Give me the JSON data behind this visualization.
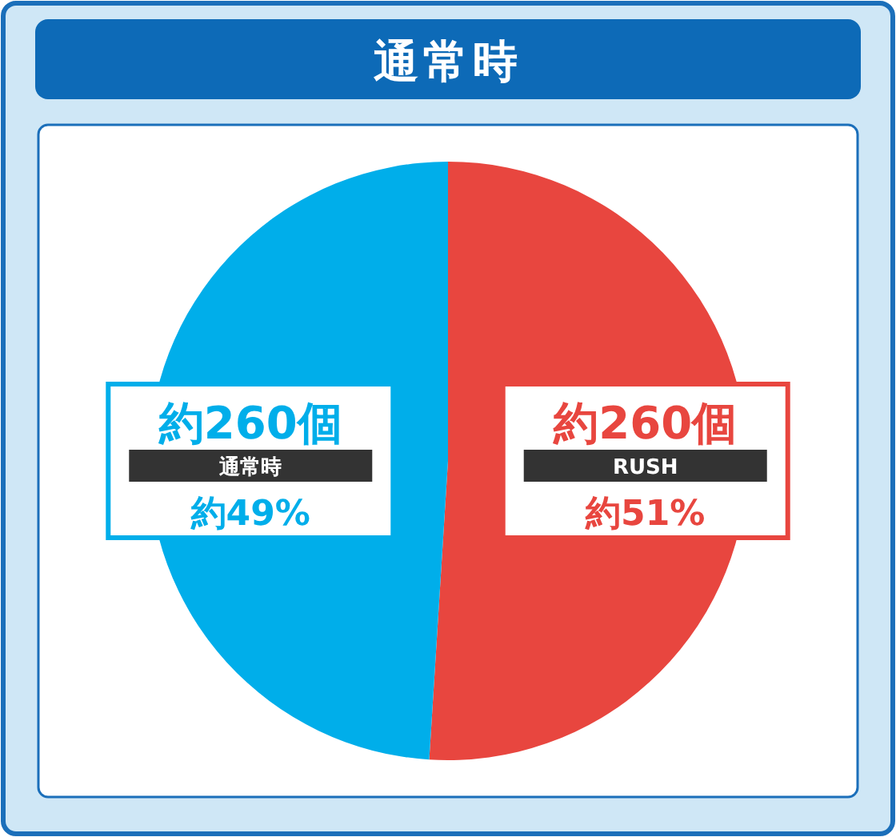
{
  "chart_data": {
    "type": "pie",
    "title": "通常時",
    "categories": [
      "RUSH",
      "通常時"
    ],
    "values": [
      51,
      49
    ],
    "colors": [
      "#e8463f",
      "#00aeea"
    ],
    "value_labels": [
      "約51%",
      "約49%"
    ],
    "annotations": [
      {
        "text": "約260個",
        "x": "RUSH"
      },
      {
        "text": "約260個",
        "x": "通常時"
      }
    ],
    "legend": false
  }
}
